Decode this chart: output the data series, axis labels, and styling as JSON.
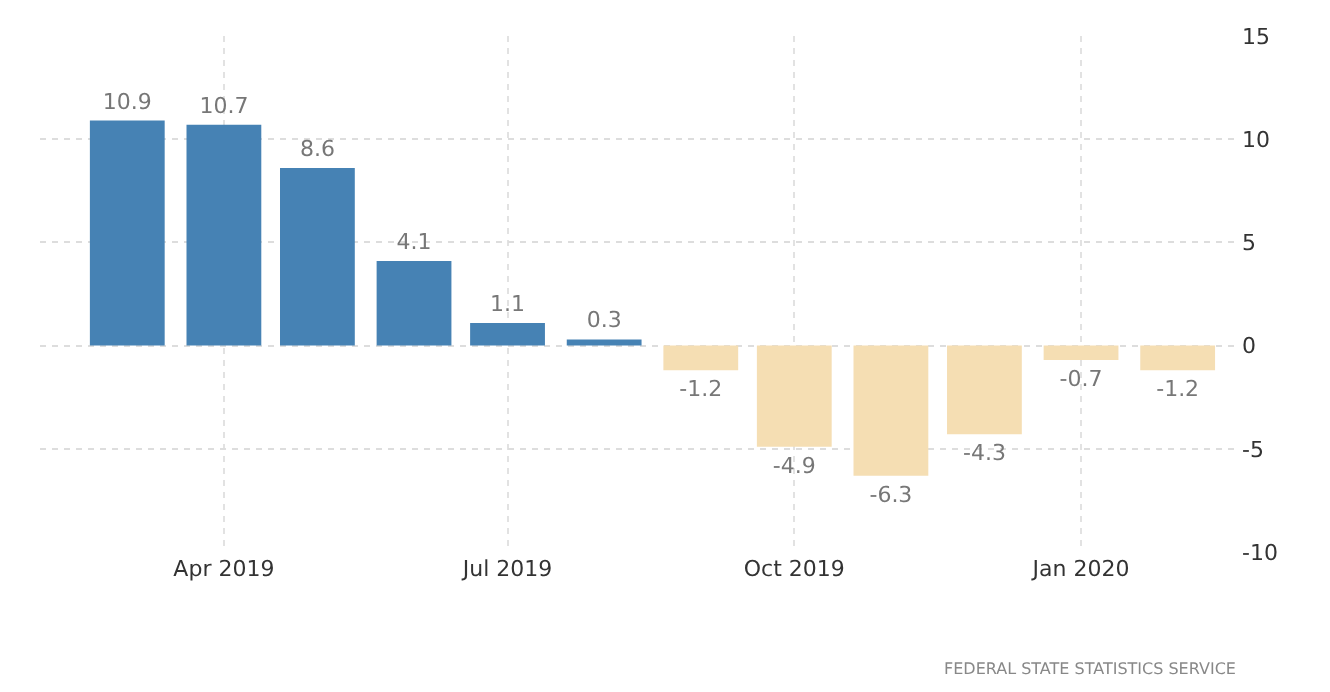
{
  "chart_data": {
    "type": "bar",
    "x": [
      "2019-03",
      "2019-04",
      "2019-05",
      "2019-06",
      "2019-07",
      "2019-08",
      "2019-09",
      "2019-10",
      "2019-11",
      "2019-12",
      "2020-01",
      "2020-02"
    ],
    "values": [
      10.9,
      10.7,
      8.6,
      4.1,
      1.1,
      0.3,
      -1.2,
      -4.9,
      -6.3,
      -4.3,
      -0.7,
      -1.2
    ],
    "colors": [
      "#4682b4",
      "#4682b4",
      "#4682b4",
      "#4682b4",
      "#4682b4",
      "#4682b4",
      "#f5deb3",
      "#f5deb3",
      "#f5deb3",
      "#f5deb3",
      "#f5deb3",
      "#f5deb3"
    ],
    "data_labels": true,
    "xlim": [
      "2019-02-01",
      "2020-02-21"
    ],
    "xticks": [
      {
        "value": "2019-04",
        "label": "Apr 2019"
      },
      {
        "value": "2019-07",
        "label": "Jul 2019"
      },
      {
        "value": "2019-10",
        "label": "Oct 2019"
      },
      {
        "value": "2020-01",
        "label": "Jan 2020"
      }
    ],
    "ylim": [
      -10,
      15
    ],
    "yticks": [
      -10,
      -5,
      0,
      5,
      10,
      15
    ],
    "grid": true,
    "annotations": [
      "FEDERAL STATE STATISTICS SERVICE"
    ]
  }
}
